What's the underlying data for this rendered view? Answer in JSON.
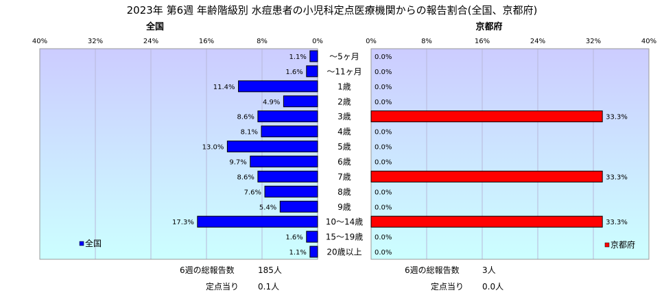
{
  "chart_data": {
    "type": "bar",
    "title": "2023年 第6週 年齢階級別 水痘患者の小児科定点医療機関からの報告割合(全国、京都府)",
    "categories": [
      "～5ヶ月",
      "～11ヶ月",
      "1歳",
      "2歳",
      "3歳",
      "4歳",
      "5歳",
      "6歳",
      "7歳",
      "8歳",
      "9歳",
      "10～14歳",
      "15～19歳",
      "20歳以上"
    ],
    "xlim": [
      0,
      40
    ],
    "ticks": [
      "40%",
      "32%",
      "24%",
      "16%",
      "8%",
      "0%",
      "0%",
      "8%",
      "16%",
      "24%",
      "32%",
      "40%"
    ],
    "tick_values": [
      0,
      8,
      16,
      24,
      32,
      40
    ],
    "grid": true,
    "legend_placement": "bottom-inside",
    "series": [
      {
        "name": "全国",
        "panel_title": "全国",
        "color": "#0000ff",
        "values": [
          1.1,
          1.6,
          11.4,
          4.9,
          8.6,
          8.1,
          13.0,
          9.7,
          8.6,
          7.6,
          5.4,
          17.3,
          1.6,
          1.1
        ],
        "labels": [
          "1.1%",
          "1.6%",
          "11.4%",
          "4.9%",
          "8.6%",
          "8.1%",
          "13.0%",
          "9.7%",
          "8.6%",
          "7.6%",
          "5.4%",
          "17.3%",
          "1.6%",
          "1.1%"
        ]
      },
      {
        "name": "京都府",
        "panel_title": "京都府",
        "color": "#ff0000",
        "values": [
          0.0,
          0.0,
          0.0,
          0.0,
          33.3,
          0.0,
          0.0,
          0.0,
          33.3,
          0.0,
          0.0,
          33.3,
          0.0,
          0.0
        ],
        "labels": [
          "0.0%",
          "0.0%",
          "0.0%",
          "0.0%",
          "33.3%",
          "0.0%",
          "0.0%",
          "0.0%",
          "33.3%",
          "0.0%",
          "0.0%",
          "33.3%",
          "0.0%",
          "0.0%"
        ]
      }
    ]
  },
  "footer": {
    "left": {
      "total_label": "6週の総報告数",
      "total_value": "185人",
      "per_label": "定点当り",
      "per_value": "0.1人"
    },
    "right": {
      "total_label": "6週の総報告数",
      "total_value": "3人",
      "per_label": "定点当り",
      "per_value": "0.0人"
    }
  }
}
